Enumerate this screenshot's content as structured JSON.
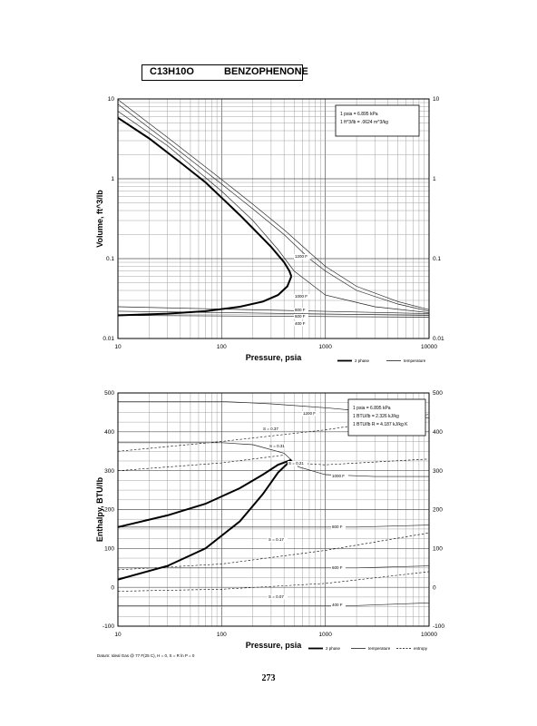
{
  "title": {
    "formula": "C13H10O",
    "name": "BENZOPHENONE"
  },
  "page_number": "273",
  "chart_data": [
    {
      "type": "line",
      "xlabel": "Pressure,  psia",
      "ylabel": "Volume, ft^3/lb",
      "xscale": "log",
      "yscale": "log",
      "xlim": [
        10,
        10000
      ],
      "ylim": [
        0.01,
        10
      ],
      "x_ticks": [
        "10",
        "100",
        "1000",
        "10000"
      ],
      "y_ticks_left": [
        "0.01",
        "0.1",
        "1",
        "10"
      ],
      "y_ticks_right": [
        "0.01",
        "0.1",
        "1",
        "10"
      ],
      "grid": true,
      "conversion_box": [
        "1 psia = 6.895 kPa",
        "1 ft^3/lb = .0624 m^3/kg"
      ],
      "legend": [
        {
          "style": "thick",
          "label": "2 phase"
        },
        {
          "style": "thin",
          "label": "temperature"
        }
      ],
      "saturation_curve": {
        "name": "2 phase",
        "vapor": [
          [
            10,
            5.8
          ],
          [
            20,
            3.2
          ],
          [
            40,
            1.6
          ],
          [
            70,
            0.9
          ],
          [
            100,
            0.58
          ],
          [
            150,
            0.35
          ],
          [
            200,
            0.24
          ],
          [
            300,
            0.14
          ],
          [
            400,
            0.09
          ],
          [
            450,
            0.07
          ],
          [
            470,
            0.06
          ]
        ],
        "liquid": [
          [
            10,
            0.0195
          ],
          [
            30,
            0.0205
          ],
          [
            70,
            0.022
          ],
          [
            150,
            0.025
          ],
          [
            250,
            0.029
          ],
          [
            350,
            0.035
          ],
          [
            430,
            0.045
          ],
          [
            470,
            0.06
          ]
        ]
      },
      "isotherms": [
        {
          "label": "400 F",
          "points": [
            [
              10,
              0.0195
            ],
            [
              10000,
              0.0185
            ]
          ]
        },
        {
          "label": "600 F",
          "points": [
            [
              10,
              0.022
            ],
            [
              10000,
              0.0195
            ]
          ]
        },
        {
          "label": "800 F",
          "points": [
            [
              10,
              0.025
            ],
            [
              10000,
              0.0205
            ]
          ]
        },
        {
          "label": "1000 F",
          "points": [
            [
              10,
              7
            ],
            [
              30,
              2.6
            ],
            [
              100,
              0.7
            ],
            [
              200,
              0.3
            ],
            [
              350,
              0.13
            ],
            [
              500,
              0.07
            ],
            [
              700,
              0.05
            ],
            [
              1000,
              0.035
            ],
            [
              3000,
              0.025
            ],
            [
              10000,
              0.021
            ]
          ]
        },
        {
          "label": "1200 F",
          "points": [
            [
              10,
              8.6
            ],
            [
              30,
              2.9
            ],
            [
              100,
              0.86
            ],
            [
              200,
              0.42
            ],
            [
              400,
              0.2
            ],
            [
              700,
              0.1
            ],
            [
              1000,
              0.07
            ],
            [
              2000,
              0.04
            ],
            [
              5000,
              0.027
            ],
            [
              10000,
              0.022
            ]
          ]
        },
        {
          "points": [
            [
              10,
              9.8
            ],
            [
              30,
              3.3
            ],
            [
              100,
              0.98
            ],
            [
              200,
              0.48
            ],
            [
              400,
              0.23
            ],
            [
              700,
              0.12
            ],
            [
              1000,
              0.08
            ],
            [
              2000,
              0.045
            ],
            [
              5000,
              0.029
            ],
            [
              10000,
              0.023
            ]
          ]
        }
      ]
    },
    {
      "type": "line",
      "xlabel": "Pressure,  psia",
      "ylabel": "Enthalpy, BTU/lb",
      "xscale": "log",
      "yscale": "linear",
      "xlim": [
        10,
        10000
      ],
      "ylim": [
        -100,
        500
      ],
      "x_ticks": [
        "10",
        "100",
        "1000",
        "10000"
      ],
      "y_ticks_left": [
        "-100",
        "0",
        "100",
        "200",
        "300",
        "400",
        "500"
      ],
      "y_ticks_right": [
        "-100",
        "0",
        "100",
        "200",
        "300",
        "400",
        "500"
      ],
      "grid": true,
      "conversion_box": [
        "1 psia = 6.895 kPa",
        "1 BTU/lb = 2.326 kJ/kg",
        "1 BTU/lb R = 4.187 kJ/kg K"
      ],
      "legend": [
        {
          "style": "thick",
          "label": "2 phase"
        },
        {
          "style": "thin",
          "label": "temperature"
        },
        {
          "style": "dashed",
          "label": "entropy"
        }
      ],
      "footnote": "Datum: Ideal Gas @ 77 F(25 C), H = 0,  S = R ln P = 0",
      "saturation_curve": {
        "name": "2 phase",
        "vapor": [
          [
            10,
            155
          ],
          [
            30,
            185
          ],
          [
            70,
            215
          ],
          [
            150,
            255
          ],
          [
            250,
            290
          ],
          [
            350,
            315
          ],
          [
            470,
            328
          ]
        ],
        "liquid": [
          [
            10,
            20
          ],
          [
            30,
            55
          ],
          [
            70,
            100
          ],
          [
            150,
            170
          ],
          [
            250,
            240
          ],
          [
            350,
            295
          ],
          [
            470,
            328
          ]
        ]
      },
      "isotherms": [
        {
          "label": "1200 F",
          "points": [
            [
              10,
              478
            ],
            [
              100,
              478
            ],
            [
              300,
              472
            ],
            [
              1000,
              462
            ],
            [
              3000,
              450
            ],
            [
              10000,
              436
            ]
          ]
        },
        {
          "label": "1000 F",
          "points": [
            [
              10,
              372
            ],
            [
              100,
              372
            ],
            [
              200,
              367
            ],
            [
              400,
              345
            ],
            [
              550,
              310
            ],
            [
              1000,
              290
            ],
            [
              3000,
              285
            ],
            [
              10000,
              285
            ]
          ]
        },
        {
          "label": "800 F",
          "points": [
            [
              10,
              155
            ],
            [
              2000,
              155
            ],
            [
              10000,
              160
            ]
          ]
        },
        {
          "label": "600 F",
          "points": [
            [
              10,
              50
            ],
            [
              2000,
              50
            ],
            [
              10000,
              55
            ]
          ]
        },
        {
          "label": "400 F",
          "points": [
            [
              10,
              -47
            ],
            [
              2000,
              -47
            ],
            [
              10000,
              -40
            ]
          ]
        }
      ],
      "isentropes": [
        {
          "label": "S = 0.37",
          "points": [
            [
              10,
              350
            ],
            [
              100,
              375
            ],
            [
              1000,
              405
            ],
            [
              10000,
              445
            ]
          ]
        },
        {
          "label": "S = 0.31",
          "points": [
            [
              10,
              300
            ],
            [
              100,
              320
            ],
            [
              400,
              340
            ]
          ]
        },
        {
          "label": "S = 0.21",
          "points": [
            [
              500,
              320
            ],
            [
              1000,
              315
            ],
            [
              10000,
              330
            ]
          ]
        },
        {
          "label": "S = 0.17",
          "points": [
            [
              10,
              45
            ],
            [
              100,
              60
            ],
            [
              1000,
              95
            ],
            [
              10000,
              140
            ]
          ]
        },
        {
          "label": "S = 0.07",
          "points": [
            [
              10,
              -10
            ],
            [
              100,
              -5
            ],
            [
              1000,
              10
            ],
            [
              10000,
              40
            ]
          ]
        }
      ]
    }
  ]
}
